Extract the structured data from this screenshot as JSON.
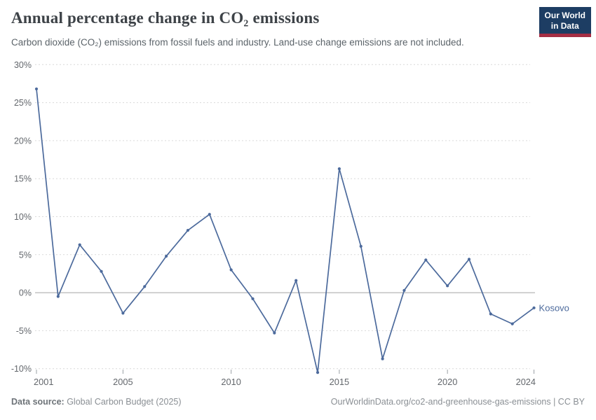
{
  "header": {
    "title": "Annual percentage change in CO₂ emissions",
    "subtitle": "Carbon dioxide (CO₂) emissions from fossil fuels and industry. Land-use change emissions are not included.",
    "logo_line1": "Our World",
    "logo_line2": "in Data"
  },
  "chart_data": {
    "type": "line",
    "title": "Annual percentage change in CO₂ emissions",
    "x": [
      2001,
      2002,
      2003,
      2004,
      2005,
      2006,
      2007,
      2008,
      2009,
      2010,
      2011,
      2012,
      2013,
      2014,
      2015,
      2016,
      2017,
      2018,
      2019,
      2020,
      2021,
      2022,
      2023,
      2024
    ],
    "series": [
      {
        "name": "Kosovo",
        "color": "#4C6A9C",
        "values": [
          26.8,
          -0.5,
          6.3,
          2.8,
          -2.7,
          0.8,
          4.8,
          8.2,
          10.3,
          3.0,
          -0.8,
          -5.3,
          1.6,
          -10.5,
          16.3,
          6.1,
          -8.7,
          0.3,
          4.3,
          0.9,
          4.4,
          -2.8,
          -4.1,
          -2.0
        ]
      }
    ],
    "x_ticks": [
      2001,
      2005,
      2010,
      2015,
      2020,
      2024
    ],
    "y_ticks": [
      30,
      25,
      20,
      15,
      10,
      5,
      0,
      -5,
      -10
    ],
    "y_tick_suffix": "%",
    "xlim": [
      2001,
      2024
    ],
    "ylim": [
      -10,
      30
    ],
    "grid": "horizontal-dashed",
    "zero_line": true,
    "legend_position": "line-end-label",
    "end_label": "Kosovo"
  },
  "footer": {
    "datasource_label": "Data source:",
    "datasource_value": " Global Carbon Budget (2025)",
    "right_text": "OurWorldinData.org/co2-and-greenhouse-gas-emissions | CC BY"
  },
  "colors": {
    "line": "#4C6A9C",
    "grid": "#d9d9d9",
    "zero_line": "#a5a5a5",
    "axis_text": "#63676c",
    "logo_bg": "#1d3d63",
    "logo_bar": "#a52e44"
  }
}
